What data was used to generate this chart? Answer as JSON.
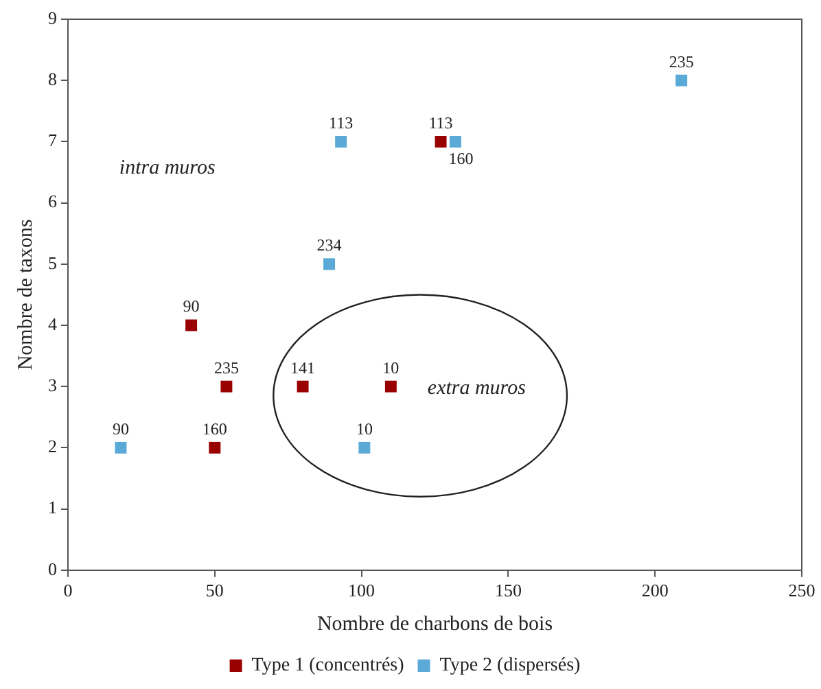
{
  "chart_data": {
    "type": "scatter",
    "xlabel": "Nombre de charbons de bois",
    "ylabel": "Nombre de taxons",
    "xlim": [
      0,
      250
    ],
    "xticks": [
      0,
      50,
      100,
      150,
      200,
      250
    ],
    "ylim": [
      0,
      9
    ],
    "yticks": [
      0,
      1,
      2,
      3,
      4,
      5,
      6,
      7,
      8,
      9
    ],
    "grid": false,
    "legend": "bottom",
    "marker": "square",
    "series": [
      {
        "name": "Type 1 (concentrés)",
        "color": "#990000",
        "x": [
          42,
          54,
          80,
          110,
          50,
          127
        ],
        "values": [
          4,
          3,
          3,
          3,
          2,
          7
        ]
      },
      {
        "name": "Type 2 (dispersés)",
        "color": "#5aa9d6",
        "x": [
          18,
          101,
          89,
          93,
          132,
          209
        ],
        "values": [
          2,
          2,
          5,
          7,
          7,
          8
        ]
      }
    ],
    "annotations": [
      {
        "text": "90",
        "x": 42,
        "y": 4
      },
      {
        "text": "235",
        "x": 54,
        "y": 3
      },
      {
        "text": "141",
        "x": 80,
        "y": 3
      },
      {
        "text": "10",
        "x": 110,
        "y": 3
      },
      {
        "text": "160",
        "x": 50,
        "y": 2
      },
      {
        "text": "113",
        "x": 127,
        "y": 7
      },
      {
        "text": "90",
        "x": 18,
        "y": 2
      },
      {
        "text": "10",
        "x": 101,
        "y": 2
      },
      {
        "text": "234",
        "x": 89,
        "y": 5
      },
      {
        "text": "113",
        "x": 93,
        "y": 7
      },
      {
        "text": "160",
        "x": 132,
        "y": 7
      },
      {
        "text": "235",
        "x": 209,
        "y": 8
      },
      "intra muros",
      "extra muros"
    ]
  }
}
